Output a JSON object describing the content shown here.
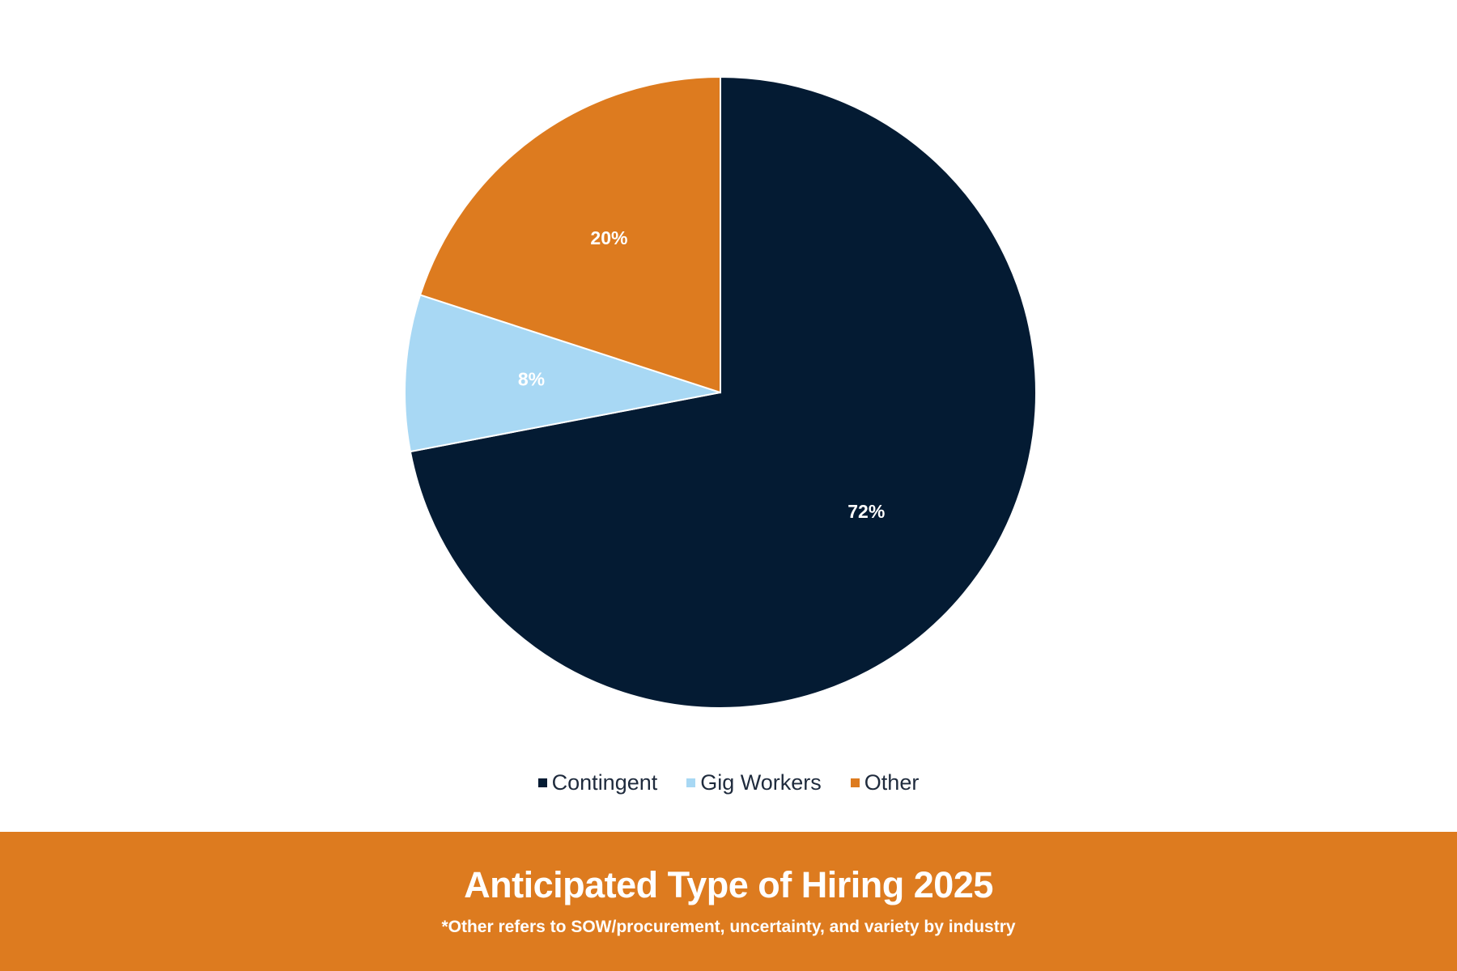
{
  "chart_data": {
    "type": "pie",
    "title": "Anticipated Type of Hiring 2025",
    "subtitle": "*Other refers to SOW/procurement, uncertainty, and variety by industry",
    "legend_position": "bottom",
    "slices": [
      {
        "name": "Contingent",
        "value": 72,
        "label": "72%",
        "color": "#041b33"
      },
      {
        "name": "Gig Workers",
        "value": 8,
        "label": "8%",
        "color": "#a8d8f4"
      },
      {
        "name": "Other",
        "value": 20,
        "label": "20%",
        "color": "#dd7b1f"
      }
    ]
  },
  "footer": {
    "background": "#dd7b1f",
    "title": "Anticipated Type of Hiring 2025",
    "note": "*Other refers to SOW/procurement, uncertainty, and variety by industry"
  }
}
